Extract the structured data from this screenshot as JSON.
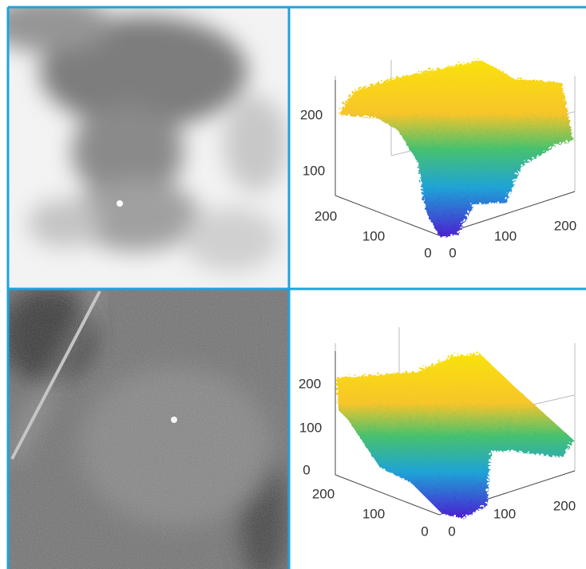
{
  "panels": [
    {
      "z_ticks": [
        200,
        100
      ],
      "y_ticks": [
        200,
        100,
        0
      ],
      "x_ticks": [
        0,
        100,
        200
      ]
    },
    {
      "z_ticks": [
        200,
        100,
        0
      ],
      "y_ticks": [
        200,
        100,
        0
      ],
      "x_ticks": [
        0,
        100,
        200
      ]
    }
  ]
}
